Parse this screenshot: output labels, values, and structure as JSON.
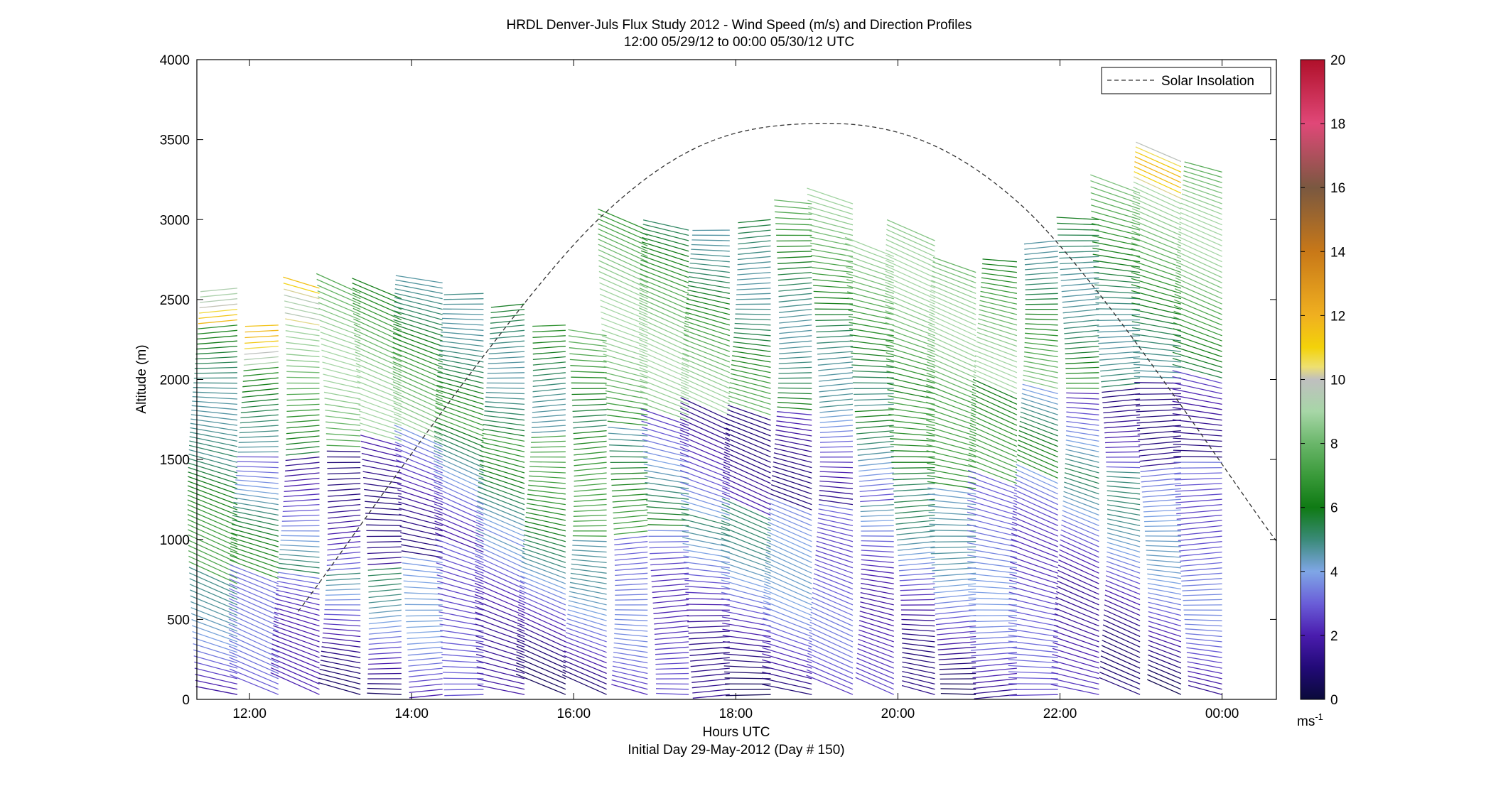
{
  "chart_data": {
    "type": "wind-barb-profile",
    "title": "HRDL Denver-Juls Flux Study 2012 - Wind Speed (m/s) and Direction Profiles",
    "subtitle": "12:00 05/29/12 to 00:00 05/30/12  UTC",
    "xlabel": "Hours UTC",
    "xlabel2": "Initial Day 29-May-2012 (Day # 150)",
    "ylabel": "Altitude (m)",
    "xlim_hours": [
      11.35,
      24.67
    ],
    "ylim": [
      0,
      4000
    ],
    "xticks": [
      {
        "hour": 12,
        "label": "12:00"
      },
      {
        "hour": 14,
        "label": "14:00"
      },
      {
        "hour": 16,
        "label": "16:00"
      },
      {
        "hour": 18,
        "label": "18:00"
      },
      {
        "hour": 20,
        "label": "20:00"
      },
      {
        "hour": 22,
        "label": "22:00"
      },
      {
        "hour": 24,
        "label": "00:00"
      }
    ],
    "yticks": [
      0,
      500,
      1000,
      1500,
      2000,
      2500,
      3000,
      3500,
      4000
    ],
    "legend": {
      "entry": "Solar Insolation",
      "placement": "top-right"
    },
    "colorbar": {
      "range": [
        0,
        20
      ],
      "ticks": [
        0,
        2,
        4,
        6,
        8,
        10,
        12,
        14,
        16,
        18,
        20
      ],
      "unit_label": "ms",
      "unit_exponent": "-1",
      "colors": {
        "0": "#0a0a3a",
        "1": "#220a78",
        "2": "#4a1cae",
        "3": "#6a5ed8",
        "4": "#7fa6e6",
        "5": "#3a8a78",
        "6": "#0f7a14",
        "7": "#3a9a3a",
        "8": "#6ab66a",
        "9": "#a7d6a7",
        "10": "#bfbfbf",
        "10.4": "#eee070",
        "11": "#f3d20a",
        "12": "#f0b020",
        "14": "#c87818",
        "16": "#7a5840",
        "18": "#e04878",
        "20": "#b0102a"
      }
    },
    "solar_insolation": {
      "peak_hour": 18.9,
      "peak_altitude": 3600,
      "points": [
        [
          12.6,
          550
        ],
        [
          16.3,
          3000
        ],
        [
          18.9,
          3600
        ],
        [
          21.5,
          3100
        ],
        [
          24.67,
          990
        ]
      ]
    },
    "profiles": {
      "start_hour": 11.85,
      "end_hour": 24.0,
      "count": 25,
      "altitude_step": 33,
      "tops": [
        2590,
        2340,
        2580,
        2560,
        2530,
        2620,
        2560,
        2480,
        2350,
        2300,
        2950,
        2960,
        2940,
        3010,
        3120,
        3130,
        2800,
        2880,
        2680,
        2750,
        2900,
        3010,
        3180,
        3380,
        3320
      ]
    }
  }
}
